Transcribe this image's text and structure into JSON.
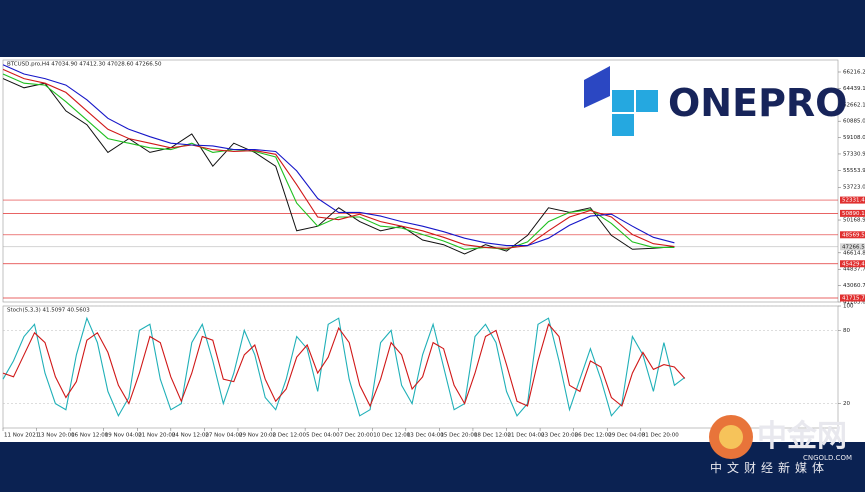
{
  "chart_data": [
    {
      "type": "line",
      "title": "BTCUSD.pro,H4 47034.90 47412.30 47028.60 47266.50",
      "x": [
        0,
        10,
        20,
        30,
        40,
        50,
        60,
        70,
        80,
        90,
        100,
        110,
        120,
        130,
        140,
        150,
        160,
        170,
        180,
        190,
        200,
        210,
        220,
        230,
        240,
        250,
        260,
        270,
        280,
        290,
        300,
        310,
        320
      ],
      "series": [
        {
          "name": "Close",
          "color": "#111111",
          "values": [
            65500,
            64500,
            65000,
            62000,
            60500,
            57500,
            59000,
            57500,
            58000,
            59500,
            56000,
            58500,
            57500,
            56000,
            49000,
            49500,
            51500,
            50000,
            49000,
            49500,
            48000,
            47500,
            46500,
            47500,
            46800,
            48500,
            51500,
            51000,
            51500,
            48500,
            47000,
            47100,
            47266.5
          ]
        },
        {
          "name": "MA fast",
          "color": "#1fbf1f",
          "values": [
            66000,
            65000,
            64800,
            63000,
            61000,
            59000,
            58500,
            58000,
            57800,
            58500,
            57500,
            57800,
            57600,
            57000,
            52000,
            49500,
            50500,
            50500,
            49500,
            49300,
            48600,
            47900,
            47000,
            47200,
            47000,
            47800,
            50000,
            51000,
            51300,
            49800,
            47800,
            47200,
            47200
          ]
        },
        {
          "name": "MA mid",
          "color": "#d01818",
          "values": [
            66500,
            65500,
            65000,
            64000,
            62000,
            60000,
            59000,
            58500,
            58000,
            58300,
            57800,
            57600,
            57700,
            57300,
            54000,
            50500,
            50200,
            50800,
            50000,
            49500,
            49000,
            48300,
            47500,
            47200,
            47100,
            47400,
            49000,
            50500,
            51200,
            50500,
            48600,
            47600,
            47300
          ]
        },
        {
          "name": "MA slow",
          "color": "#1616c8",
          "values": [
            67000,
            66000,
            65500,
            64800,
            63200,
            61200,
            60000,
            59200,
            58500,
            58300,
            58200,
            57800,
            57800,
            57600,
            55500,
            52500,
            51000,
            51000,
            50600,
            50000,
            49500,
            48900,
            48200,
            47700,
            47400,
            47400,
            48200,
            49600,
            50600,
            50800,
            49500,
            48300,
            47700
          ]
        }
      ],
      "xlim": [
        0,
        398
      ],
      "ylim": [
        41283.65,
        67517
      ],
      "yticks": [
        {
          "value": 66216.2,
          "label": "66216.20"
        },
        64439.15,
        {
          "value": 62662.1,
          "label": "62662.10"
        },
        60885.05,
        {
          "value": 59108,
          "label": "59108.00"
        },
        57330.95,
        {
          "value": 55553.9,
          "label": "55553.90"
        },
        {
          "value": 53723,
          "label": "53723.00"
        },
        {
          "value": 50168.9,
          "label": "50168.90"
        },
        {
          "value": 46614.8,
          "label": "46614.80"
        },
        44837.75,
        {
          "value": 43060.7,
          "label": "43060.70"
        },
        41283.65
      ],
      "levels": [
        {
          "value": 52331.4,
          "label": "52331.40"
        },
        50890.11,
        48569.57,
        45429.47,
        41715.74
      ],
      "level_color": "#e03030",
      "last_price": {
        "value": 47266.5,
        "label": "47266.50"
      }
    },
    {
      "type": "line",
      "title": "Stoch(5,3,3) 41.5097 40.5603",
      "x": [
        0,
        5,
        10,
        15,
        20,
        25,
        30,
        35,
        40,
        45,
        50,
        55,
        60,
        65,
        70,
        75,
        80,
        85,
        90,
        95,
        100,
        105,
        110,
        115,
        120,
        125,
        130,
        135,
        140,
        145,
        150,
        155,
        160,
        165,
        170,
        175,
        180,
        185,
        190,
        195,
        200,
        205,
        210,
        215,
        220,
        225,
        230,
        235,
        240,
        245,
        250,
        255,
        260,
        265,
        270,
        275,
        280,
        285,
        290,
        295,
        300,
        305,
        310,
        315,
        320,
        325
      ],
      "series": [
        {
          "name": "Main",
          "color": "#20b0b8",
          "values": [
            40,
            55,
            75,
            85,
            45,
            20,
            15,
            60,
            90,
            70,
            30,
            10,
            25,
            80,
            85,
            40,
            15,
            20,
            70,
            85,
            55,
            20,
            45,
            80,
            60,
            25,
            15,
            40,
            75,
            65,
            30,
            85,
            90,
            40,
            10,
            15,
            70,
            80,
            35,
            20,
            60,
            85,
            50,
            15,
            20,
            75,
            85,
            70,
            30,
            10,
            20,
            85,
            90,
            55,
            15,
            40,
            65,
            40,
            10,
            20,
            75,
            60,
            30,
            70,
            35,
            41.5097
          ]
        },
        {
          "name": "Signal",
          "color": "#d01818",
          "values": [
            45,
            42,
            60,
            78,
            70,
            42,
            25,
            38,
            72,
            78,
            62,
            35,
            20,
            45,
            75,
            70,
            42,
            22,
            45,
            75,
            72,
            40,
            38,
            60,
            68,
            40,
            22,
            32,
            58,
            68,
            45,
            58,
            82,
            70,
            35,
            18,
            40,
            70,
            60,
            32,
            42,
            70,
            65,
            35,
            20,
            45,
            75,
            80,
            52,
            22,
            18,
            55,
            85,
            75,
            35,
            30,
            55,
            50,
            25,
            18,
            45,
            62,
            48,
            52,
            50,
            40.5603
          ]
        }
      ],
      "xlim": [
        0,
        398
      ],
      "ylim": [
        0,
        100
      ],
      "yticks": [
        100,
        80,
        20
      ],
      "xticks": [
        {
          "value": 0,
          "label": "11 Nov 2021"
        },
        {
          "value": 16,
          "label": "13 Nov 20:00"
        },
        {
          "value": 32,
          "label": "16 Nov 12:00"
        },
        {
          "value": 48,
          "label": "19 Nov 04:00"
        },
        {
          "value": 64,
          "label": "21 Nov 20:00"
        },
        {
          "value": 80,
          "label": "24 Nov 12:00"
        },
        {
          "value": 96,
          "label": "27 Nov 04:00"
        },
        {
          "value": 112,
          "label": "29 Nov 20:00"
        },
        {
          "value": 128,
          "label": "2 Dec 12:00"
        },
        {
          "value": 144,
          "label": "5 Dec 04:00"
        },
        {
          "value": 160,
          "label": "7 Dec 20:00"
        },
        {
          "value": 176,
          "label": "10 Dec 12:00"
        },
        {
          "value": 192,
          "label": "13 Dec 04:00"
        },
        {
          "value": 208,
          "label": "15 Dec 20:00"
        },
        {
          "value": 224,
          "label": "18 Dec 12:00"
        },
        {
          "value": 240,
          "label": "21 Dec 04:00"
        },
        {
          "value": 256,
          "label": "23 Dec 20:00"
        },
        {
          "value": 272,
          "label": "26 Dec 12:00"
        },
        {
          "value": 288,
          "label": "29 Dec 04:00"
        },
        {
          "value": 304,
          "label": "31 Dec 20:00"
        }
      ]
    }
  ],
  "branding": {
    "logo": "ONEPRO",
    "site_name": "中金网",
    "site_url": "CNGOLD.COM",
    "slogan": "中文财经新媒体"
  }
}
